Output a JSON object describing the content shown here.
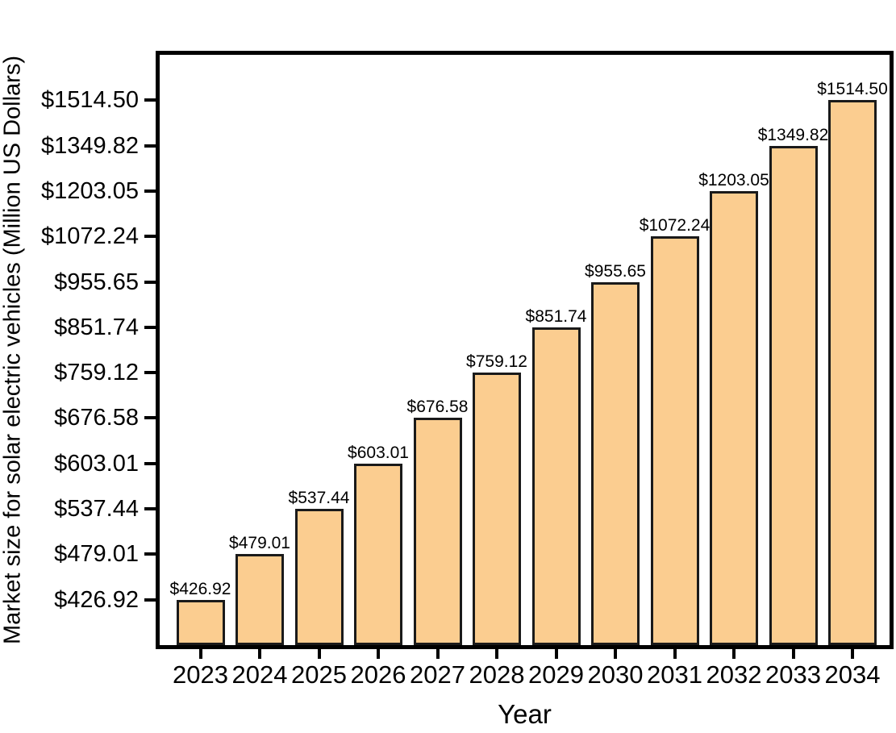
{
  "chart_data": {
    "type": "bar",
    "title": "",
    "xlabel": "Year",
    "ylabel": "Market size for solar electric vehicles (Million US Dollars)",
    "categories": [
      "2023",
      "2024",
      "2025",
      "2026",
      "2027",
      "2028",
      "2029",
      "2030",
      "2031",
      "2032",
      "2033",
      "2034"
    ],
    "values": [
      426.92,
      479.01,
      537.44,
      603.01,
      676.58,
      759.12,
      851.74,
      955.65,
      1072.24,
      1203.05,
      1349.82,
      1514.5
    ],
    "bar_value_labels": [
      "$426.92",
      "$479.01",
      "$537.44",
      "$603.01",
      "$676.58",
      "$759.12",
      "$851.74",
      "$955.65",
      "$1072.24",
      "$1203.05",
      "$1349.82",
      "$1514.50"
    ],
    "yticks": [
      426.92,
      479.01,
      537.44,
      603.01,
      676.58,
      759.12,
      851.74,
      955.65,
      1072.24,
      1203.05,
      1349.82,
      1514.5
    ],
    "ytick_labels": [
      "$426.92",
      "$479.01",
      "$537.44",
      "$603.01",
      "$676.58",
      "$759.12",
      "$851.74",
      "$955.65",
      "$1072.24",
      "$1203.05",
      "$1349.82",
      "$1514.50"
    ],
    "yscale": "log",
    "ylim": [
      380.5,
      1699.3
    ],
    "grid": false,
    "legend": null,
    "colors": {
      "bar_fill": "#FBCD90",
      "bar_edge": "#1A1A1A",
      "axis": "#000000",
      "text": "#000000"
    }
  }
}
